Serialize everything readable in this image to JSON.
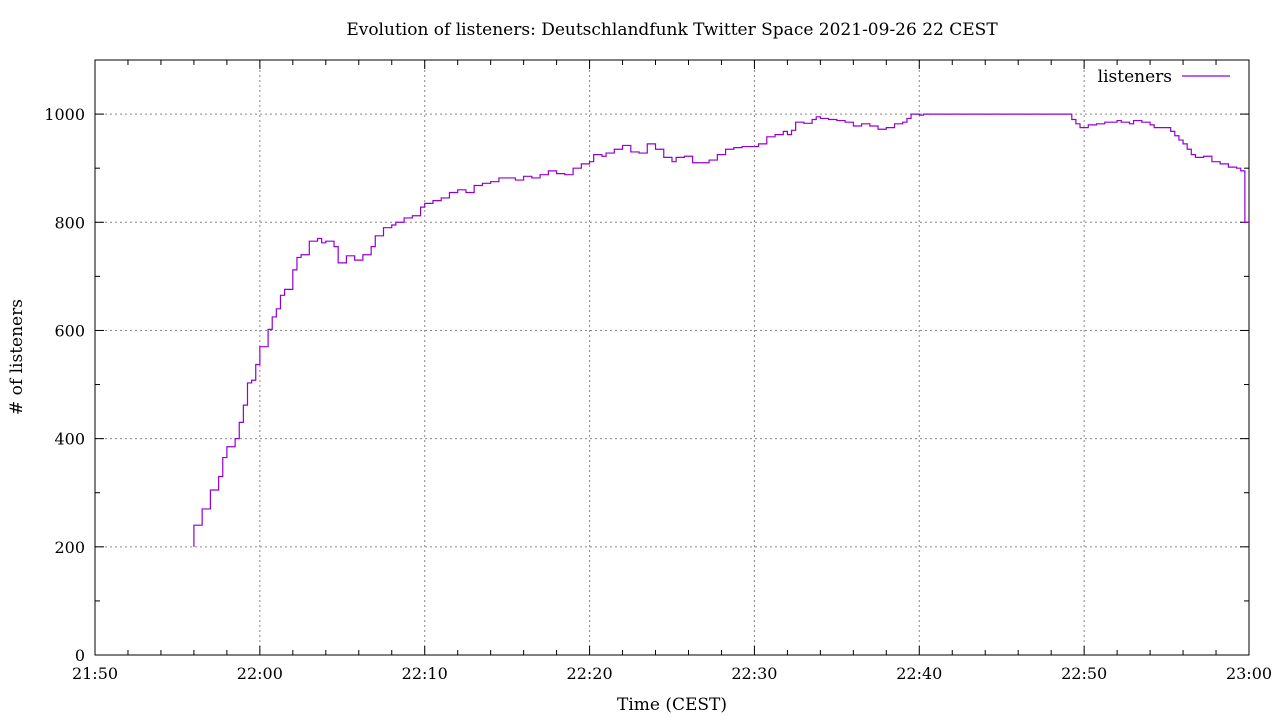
{
  "chart_data": {
    "type": "line",
    "step": true,
    "title": "Evolution of listeners: Deutschlandfunk Twitter Space 2021-09-26 22 CEST",
    "xlabel": "Time (CEST)",
    "ylabel": "# of listeners",
    "x_ticks": [
      "21:50",
      "22:00",
      "22:10",
      "22:20",
      "22:30",
      "22:40",
      "22:50",
      "23:00"
    ],
    "xlim": [
      "21:50",
      "23:00"
    ],
    "y_ticks": [
      0,
      200,
      400,
      600,
      800,
      1000
    ],
    "ylim": [
      0,
      1100
    ],
    "grid": true,
    "legend": "top-right",
    "series": [
      {
        "name": "listeners",
        "color": "#9400d3",
        "points": [
          [
            "21:56:00",
            200
          ],
          [
            "21:56:00",
            240
          ],
          [
            "21:56:30",
            270
          ],
          [
            "21:57:00",
            305
          ],
          [
            "21:57:30",
            330
          ],
          [
            "21:57:45",
            365
          ],
          [
            "21:58:00",
            385
          ],
          [
            "21:58:30",
            400
          ],
          [
            "21:58:45",
            430
          ],
          [
            "21:59:00",
            462
          ],
          [
            "21:59:15",
            503
          ],
          [
            "21:59:30",
            508
          ],
          [
            "21:59:45",
            537
          ],
          [
            "22:00:00",
            570
          ],
          [
            "22:00:30",
            602
          ],
          [
            "22:00:45",
            625
          ],
          [
            "22:01:00",
            640
          ],
          [
            "22:01:15",
            665
          ],
          [
            "22:01:30",
            676
          ],
          [
            "22:02:00",
            712
          ],
          [
            "22:02:15",
            735
          ],
          [
            "22:02:30",
            740
          ],
          [
            "22:03:00",
            765
          ],
          [
            "22:03:30",
            770
          ],
          [
            "22:03:45",
            762
          ],
          [
            "22:04:00",
            765
          ],
          [
            "22:04:30",
            755
          ],
          [
            "22:04:45",
            725
          ],
          [
            "22:05:15",
            738
          ],
          [
            "22:05:45",
            730
          ],
          [
            "22:06:15",
            740
          ],
          [
            "22:06:45",
            755
          ],
          [
            "22:07:00",
            775
          ],
          [
            "22:07:30",
            790
          ],
          [
            "22:08:00",
            795
          ],
          [
            "22:08:15",
            800
          ],
          [
            "22:08:45",
            808
          ],
          [
            "22:09:15",
            812
          ],
          [
            "22:09:45",
            828
          ],
          [
            "22:10:00",
            835
          ],
          [
            "22:10:30",
            840
          ],
          [
            "22:11:00",
            845
          ],
          [
            "22:11:30",
            855
          ],
          [
            "22:12:00",
            860
          ],
          [
            "22:12:30",
            855
          ],
          [
            "22:13:00",
            868
          ],
          [
            "22:13:30",
            872
          ],
          [
            "22:14:00",
            875
          ],
          [
            "22:14:30",
            882
          ],
          [
            "22:15:30",
            878
          ],
          [
            "22:16:00",
            885
          ],
          [
            "22:16:30",
            882
          ],
          [
            "22:17:00",
            888
          ],
          [
            "22:17:30",
            895
          ],
          [
            "22:18:00",
            890
          ],
          [
            "22:18:30",
            888
          ],
          [
            "22:19:00",
            900
          ],
          [
            "22:19:30",
            908
          ],
          [
            "22:20:00",
            912
          ],
          [
            "22:20:15",
            925
          ],
          [
            "22:20:45",
            922
          ],
          [
            "22:21:00",
            928
          ],
          [
            "22:21:30",
            935
          ],
          [
            "22:22:00",
            942
          ],
          [
            "22:22:30",
            930
          ],
          [
            "22:23:00",
            928
          ],
          [
            "22:23:30",
            945
          ],
          [
            "22:24:00",
            935
          ],
          [
            "22:24:30",
            920
          ],
          [
            "22:25:00",
            912
          ],
          [
            "22:25:15",
            920
          ],
          [
            "22:25:45",
            922
          ],
          [
            "22:26:15",
            910
          ],
          [
            "22:27:15",
            915
          ],
          [
            "22:27:45",
            925
          ],
          [
            "22:28:15",
            935
          ],
          [
            "22:28:45",
            938
          ],
          [
            "22:29:15",
            940
          ],
          [
            "22:29:45",
            940
          ],
          [
            "22:30:15",
            945
          ],
          [
            "22:30:45",
            958
          ],
          [
            "22:31:15",
            962
          ],
          [
            "22:31:45",
            968
          ],
          [
            "22:32:00",
            962
          ],
          [
            "22:32:15",
            970
          ],
          [
            "22:32:30",
            985
          ],
          [
            "22:33:00",
            983
          ],
          [
            "22:33:30",
            990
          ],
          [
            "22:33:45",
            995
          ],
          [
            "22:34:00",
            992
          ],
          [
            "22:34:30",
            990
          ],
          [
            "22:35:00",
            988
          ],
          [
            "22:35:30",
            985
          ],
          [
            "22:36:00",
            978
          ],
          [
            "22:36:30",
            982
          ],
          [
            "22:37:00",
            978
          ],
          [
            "22:37:30",
            972
          ],
          [
            "22:38:00",
            975
          ],
          [
            "22:38:30",
            982
          ],
          [
            "22:39:00",
            985
          ],
          [
            "22:39:15",
            992
          ],
          [
            "22:39:30",
            1000
          ],
          [
            "22:40:00",
            998
          ],
          [
            "22:40:15",
            1000
          ],
          [
            "22:48:45",
            1000
          ],
          [
            "22:49:15",
            990
          ],
          [
            "22:49:30",
            982
          ],
          [
            "22:49:45",
            975
          ],
          [
            "22:50:15",
            980
          ],
          [
            "22:50:45",
            982
          ],
          [
            "22:51:15",
            985
          ],
          [
            "22:51:45",
            985
          ],
          [
            "22:52:00",
            988
          ],
          [
            "22:52:15",
            985
          ],
          [
            "22:52:45",
            982
          ],
          [
            "22:53:00",
            988
          ],
          [
            "22:53:30",
            985
          ],
          [
            "22:54:00",
            980
          ],
          [
            "22:54:15",
            975
          ],
          [
            "22:54:45",
            975
          ],
          [
            "22:55:15",
            968
          ],
          [
            "22:55:30",
            960
          ],
          [
            "22:55:45",
            952
          ],
          [
            "22:56:00",
            945
          ],
          [
            "22:56:15",
            935
          ],
          [
            "22:56:30",
            925
          ],
          [
            "22:56:45",
            920
          ],
          [
            "22:57:15",
            922
          ],
          [
            "22:57:45",
            912
          ],
          [
            "22:58:15",
            908
          ],
          [
            "22:58:45",
            902
          ],
          [
            "22:59:15",
            900
          ],
          [
            "22:59:30",
            895
          ],
          [
            "22:59:45",
            800
          ],
          [
            "23:00:00",
            800
          ]
        ]
      }
    ]
  }
}
